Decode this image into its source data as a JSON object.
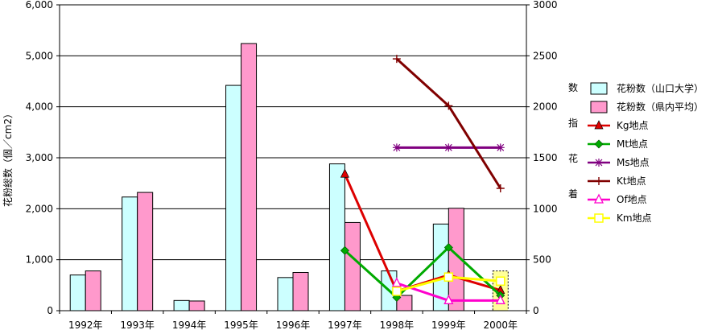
{
  "chart_data": {
    "type": "bar",
    "categories": [
      "1992年",
      "1993年",
      "1994年",
      "1995年",
      "1996年",
      "1997年",
      "1998年",
      "1999年",
      "2000年"
    ],
    "ylabel_left": "花粉総数（個／cm2）",
    "ylabel_right": "着花指数",
    "ylim_left": [
      0,
      6000
    ],
    "ylim_right": [
      0,
      3000
    ],
    "yticks_left": [
      "0",
      "1,000",
      "2,000",
      "3,000",
      "4,000",
      "5,000",
      "6,000"
    ],
    "yticks_right": [
      "0",
      "500",
      "1000",
      "1500",
      "2000",
      "2500",
      "3000"
    ],
    "grid": true,
    "legend_position": "right",
    "bar_series": [
      {
        "name": "花粉数（山口大学）",
        "color": "#ccffff",
        "axis": "left",
        "values": [
          700,
          2230,
          200,
          4420,
          650,
          2880,
          780,
          1700,
          null
        ]
      },
      {
        "name": "花粉数（県内平均）",
        "color": "#ff99cc",
        "axis": "left",
        "values": [
          780,
          2320,
          190,
          5240,
          750,
          1730,
          300,
          2010,
          null
        ]
      }
    ],
    "line_series": [
      {
        "name": "Kg地点",
        "color": "#dd0000",
        "marker": "triangle-filled",
        "axis": "right",
        "values": [
          null,
          null,
          null,
          null,
          null,
          1340,
          190,
          350,
          200
        ]
      },
      {
        "name": "Mt地点",
        "color": "#00aa00",
        "marker": "diamond",
        "axis": "right",
        "values": [
          null,
          null,
          null,
          null,
          null,
          590,
          130,
          620,
          150
        ]
      },
      {
        "name": "Ms地点",
        "color": "#800080",
        "marker": "asterisk",
        "axis": "right",
        "values": [
          null,
          null,
          null,
          null,
          null,
          null,
          1600,
          1600,
          1600
        ]
      },
      {
        "name": "Kt地点",
        "color": "#800000",
        "marker": "plus",
        "axis": "right",
        "values": [
          null,
          null,
          null,
          null,
          null,
          null,
          2470,
          2010,
          1200
        ]
      },
      {
        "name": "Of地点",
        "color": "#ff00cc",
        "marker": "triangle-open",
        "axis": "right",
        "values": [
          null,
          null,
          null,
          null,
          null,
          null,
          270,
          100,
          100
        ]
      },
      {
        "name": "Km地点",
        "color": "#ffff00",
        "marker": "square-open",
        "axis": "right",
        "values": [
          null,
          null,
          null,
          null,
          null,
          null,
          190,
          330,
          290
        ]
      }
    ],
    "extra_bar_2000": {
      "series": "花粉数（山口大学）",
      "value": 780,
      "color": "#ffff99"
    }
  }
}
